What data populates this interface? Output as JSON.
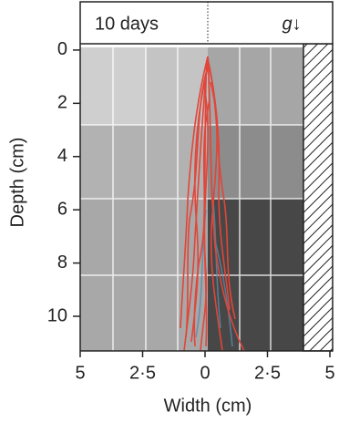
{
  "chart_data": {
    "type": "root-trace",
    "header": "10 days",
    "gravity_label": "g↓",
    "xlabel": "Width (cm)",
    "ylabel": "Depth (cm)",
    "xlim": [
      -5,
      5
    ],
    "xticks": [
      {
        "value": -5,
        "label": "5"
      },
      {
        "value": -2.5,
        "label": "2·5"
      },
      0,
      {
        "value": 2.5,
        "label": "2·5"
      },
      {
        "value": 5,
        "label": "5"
      }
    ],
    "ylim": [
      -0.1,
      11.3
    ],
    "yticks": [
      0,
      2,
      4,
      6,
      8,
      10
    ]
  }
}
